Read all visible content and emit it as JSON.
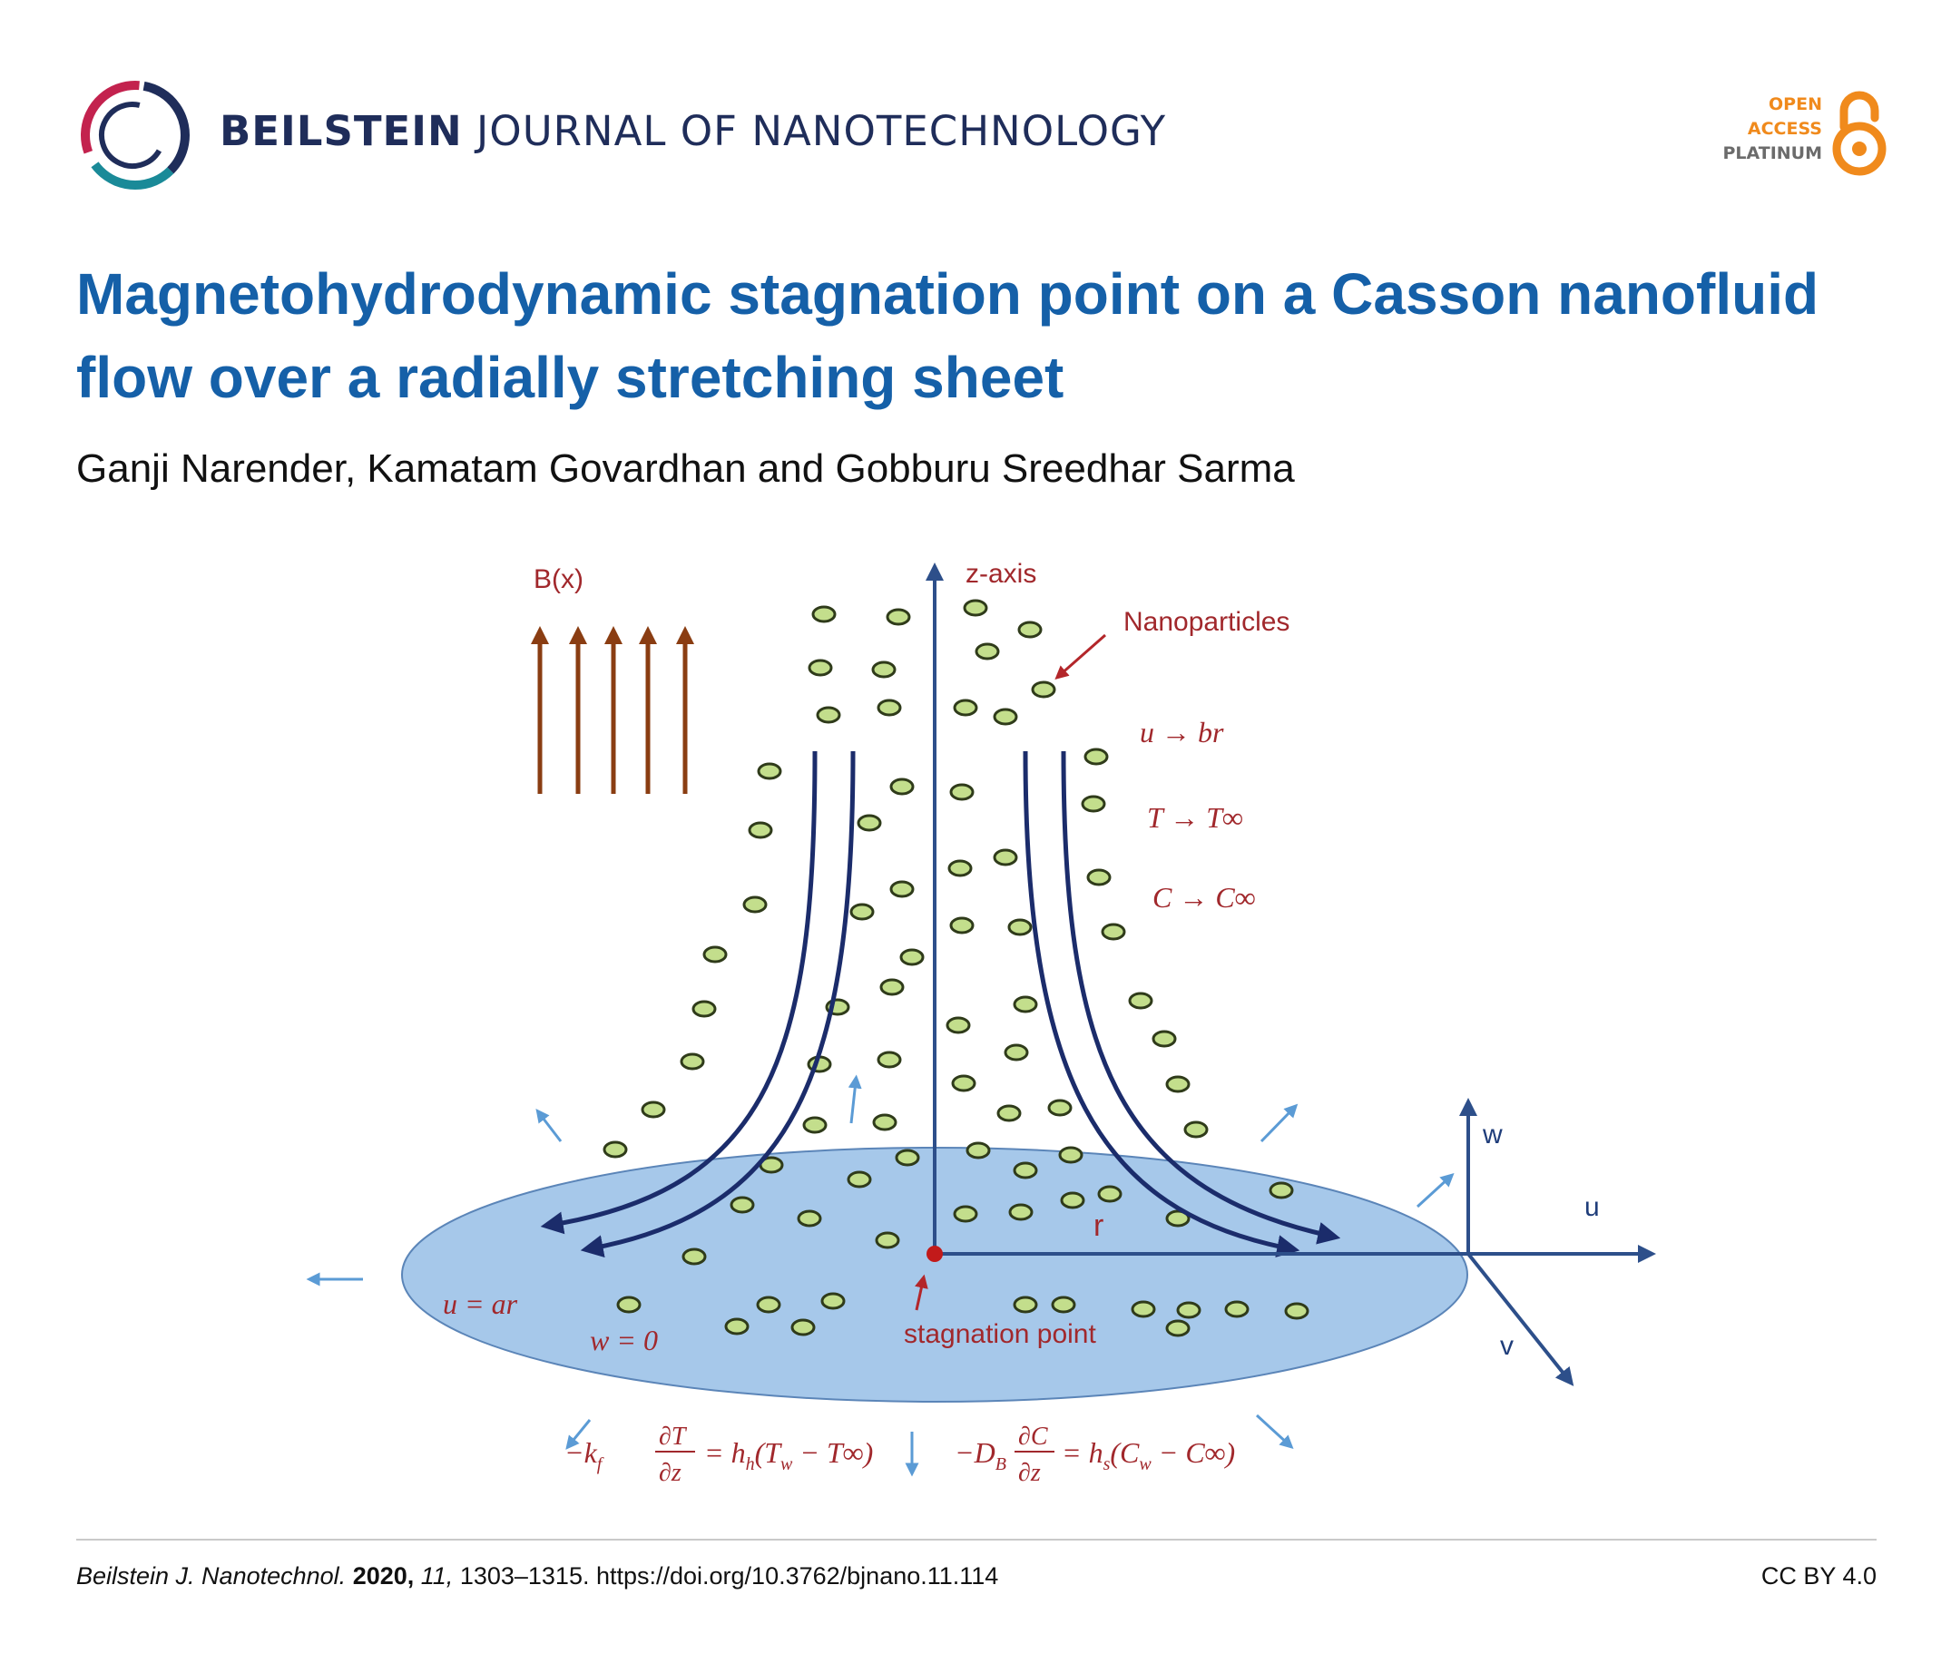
{
  "header": {
    "journal_bold": "BEILSTEIN",
    "journal_rest": " JOURNAL OF NANOTECHNOLOGY",
    "open_access": {
      "line1": "OPEN",
      "line2": "ACCESS",
      "line3": "PLATINUM"
    },
    "colors": {
      "journal": "#1f2d5a",
      "accent_orange": "#f08a1c",
      "title_blue": "#1560a8"
    }
  },
  "article": {
    "title": "Magnetohydrodynamic stagnation point on a Casson nanofluid flow over a radially stretching sheet",
    "authors": "Ganji Narender, Kamatam Govardhan and Gobburu Sreedhar Sarma"
  },
  "figure": {
    "field_label": "B(x)",
    "z_axis_label": "z-axis",
    "nanoparticles_label": "Nanoparticles",
    "far_field": [
      "u → br",
      "T → T∞",
      "C → C∞"
    ],
    "r_label": "r",
    "wall_u": "u = ar",
    "wall_w": "w = 0",
    "stagnation_label": "stagnation point",
    "w_label": "w",
    "u_label": "u",
    "v_label": "v",
    "bc_heat": {
      "lhs_prefix": "−k",
      "lhs_sub": "f",
      "num": "∂T",
      "den": "∂z",
      "rhs": "= h",
      "rhs_sub": "h",
      "rhs_tail": "(T",
      "rhs_w": "w",
      "rhs_end": " − T∞)"
    },
    "bc_mass": {
      "lhs_prefix": "−D",
      "lhs_sub": "B",
      "num": "∂C",
      "den": "∂z",
      "rhs": "= h",
      "rhs_sub": "s",
      "rhs_tail": "(C",
      "rhs_w": "w",
      "rhs_end": " − C∞)"
    },
    "colors": {
      "sheet": "#a6c8ea",
      "particle": "#c3de8c",
      "stream": "#1b2c6b",
      "field_arrow": "#8a3d12",
      "label_red": "#a1282c"
    }
  },
  "footer": {
    "journal_abbrev": "Beilstein J. Nanotechnol.",
    "year": "2020,",
    "volume": "11,",
    "pages_doi": " 1303–1315. https://doi.org/10.3762/bjnano.11.114",
    "license": "CC BY 4.0"
  }
}
